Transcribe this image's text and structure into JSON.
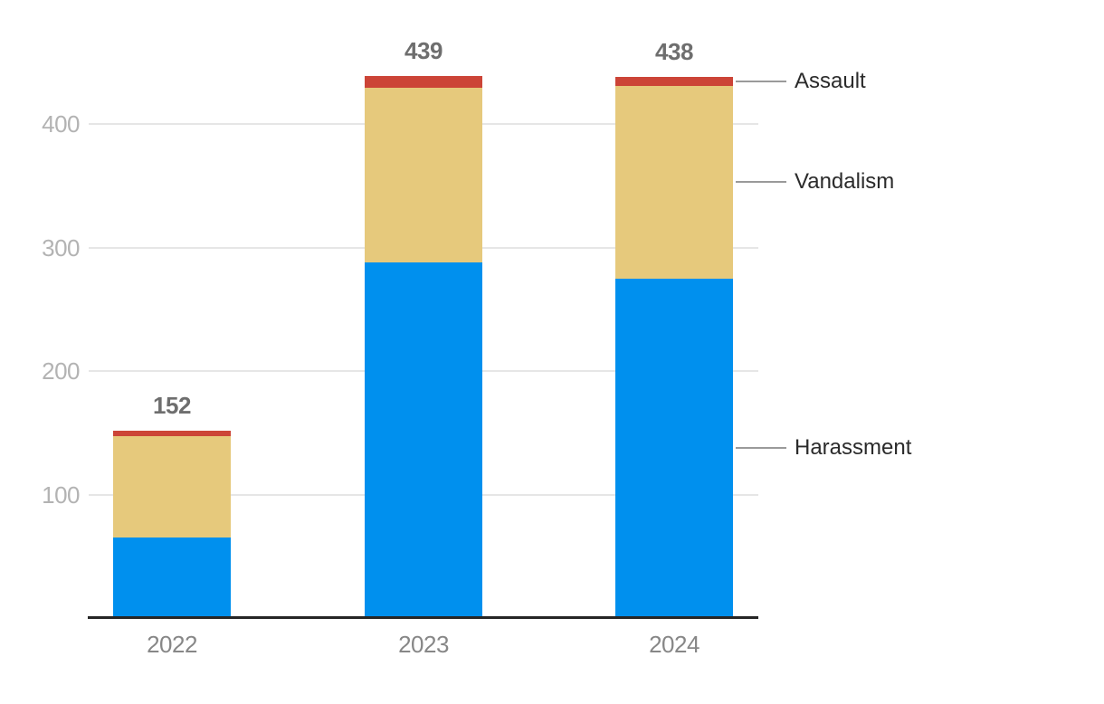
{
  "chart_data": {
    "type": "bar",
    "stacked": true,
    "title": "",
    "xlabel": "",
    "ylabel": "",
    "categories": [
      "2022",
      "2023",
      "2024"
    ],
    "series": [
      {
        "name": "Harassment",
        "color": "#0090ee",
        "values": [
          65,
          288,
          275
        ]
      },
      {
        "name": "Vandalism",
        "color": "#e6c97c",
        "values": [
          82,
          141,
          156
        ]
      },
      {
        "name": "Assault",
        "color": "#cc4437",
        "values": [
          5,
          10,
          7
        ]
      }
    ],
    "totals": [
      "152",
      "439",
      "438"
    ],
    "y_ticks": [
      100,
      200,
      300,
      400
    ],
    "ylim": [
      0,
      460
    ],
    "grid": "horizontal",
    "legend_position": "right",
    "legend_labels": [
      "Assault",
      "Vandalism",
      "Harassment"
    ],
    "style": {
      "gridline_color": "#e6e6e6",
      "axis_line_color": "#262626",
      "y_tick_color": "#b3b3b3",
      "x_label_color": "#878787",
      "total_label_color": "#6e6e6e",
      "legend_text_color": "#2b2b2b",
      "legend_line_color": "#9a9a9a"
    }
  }
}
